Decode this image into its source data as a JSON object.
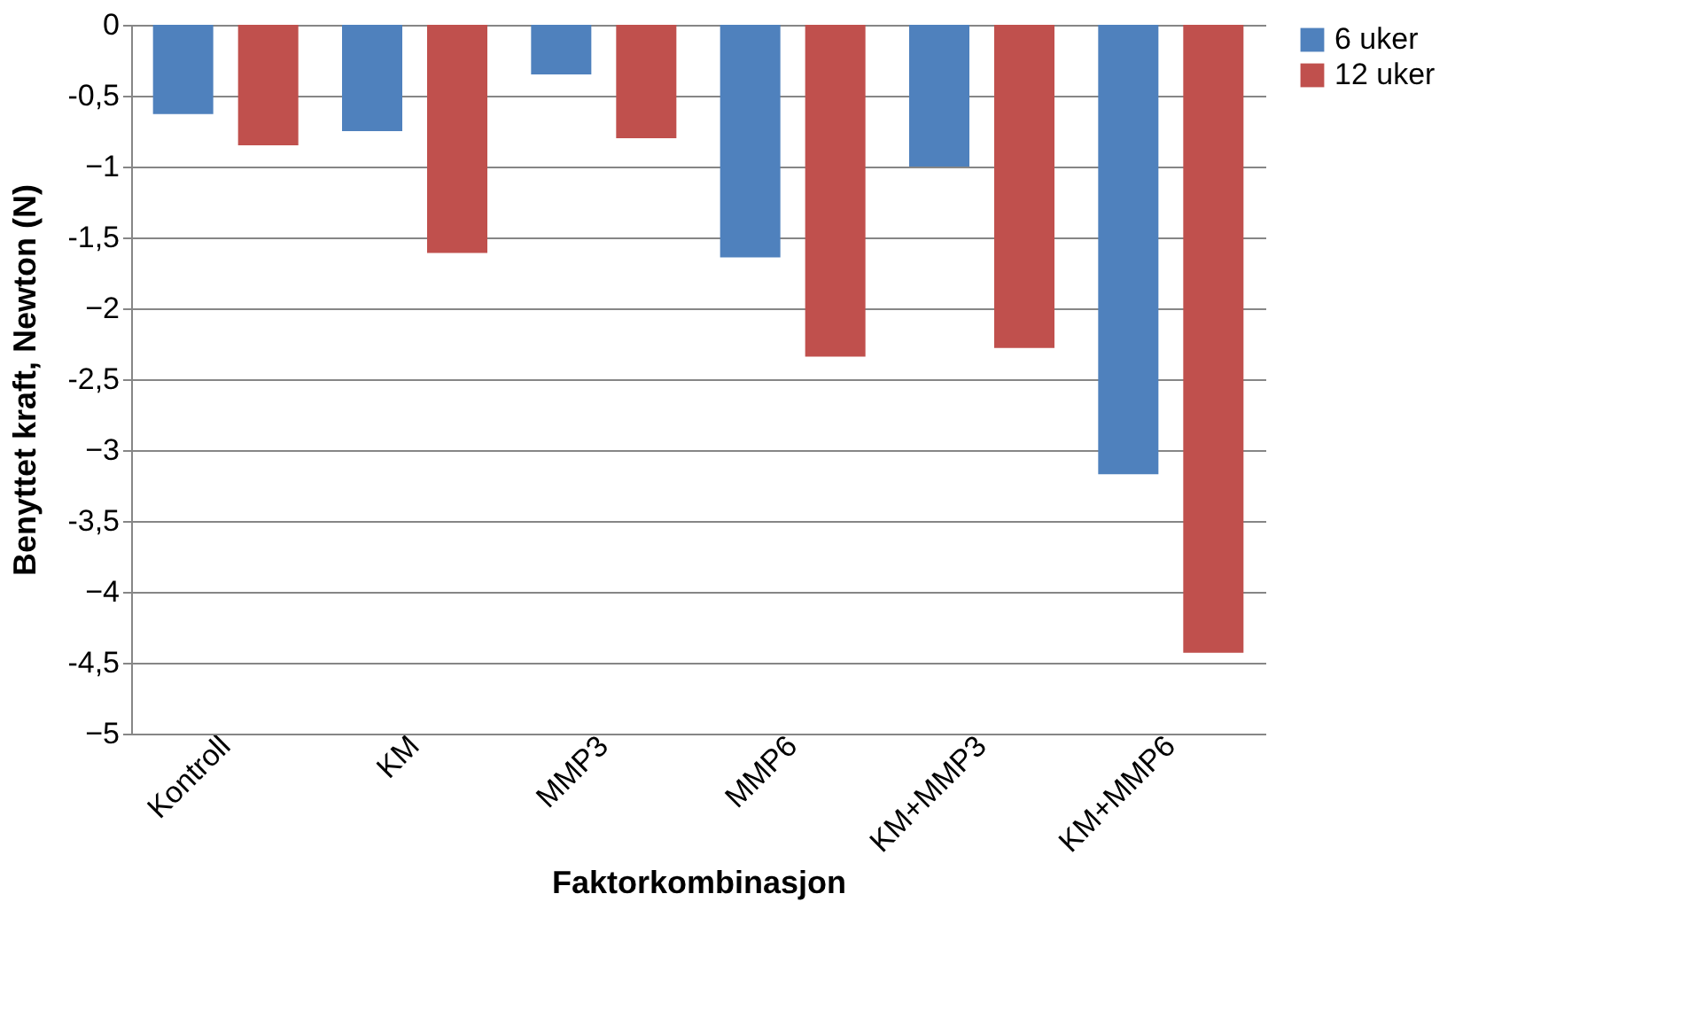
{
  "chart_data": {
    "type": "bar",
    "xlabel": "Faktorkombinasjon",
    "ylabel": "Benyttet kraft, Newton (N)",
    "categories": [
      "Kontroll",
      "KM",
      "MMP3",
      "MMP6",
      "KM+MMP3",
      "KM+MMP6"
    ],
    "series": [
      {
        "name": "6 uker",
        "color": "#4f81bd",
        "values": [
          -0.63,
          -0.75,
          -0.35,
          -1.64,
          -1.0,
          -3.17
        ]
      },
      {
        "name": "12 uker",
        "color": "#c0504d",
        "values": [
          -0.85,
          -1.61,
          -0.8,
          -2.34,
          -2.28,
          -4.43
        ]
      }
    ],
    "ylim": [
      -5,
      0
    ],
    "yticks": [
      -5,
      {
        "value": -4.5,
        "label": "-4,5"
      },
      -4,
      {
        "value": -3.5,
        "label": "-3,5"
      },
      -3,
      {
        "value": -2.5,
        "label": "-2,5"
      },
      -2,
      {
        "value": -1.5,
        "label": "-1,5"
      },
      -1,
      {
        "value": -0.5,
        "label": "-0,5"
      },
      0
    ],
    "grid": "y",
    "legend": "right"
  }
}
